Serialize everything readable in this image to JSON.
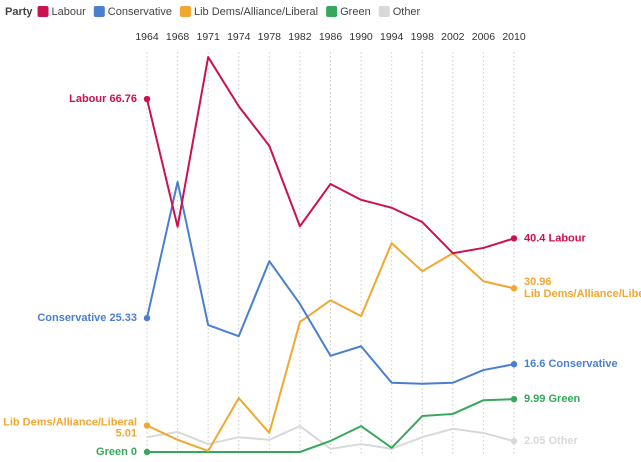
{
  "chart_data": {
    "type": "line",
    "legend_title": "Party",
    "categories": [
      "1964",
      "1968",
      "1971",
      "1974",
      "1978",
      "1982",
      "1986",
      "1990",
      "1994",
      "1998",
      "2002",
      "2006",
      "2010"
    ],
    "ylim": [
      0,
      75
    ],
    "grid": true,
    "series": [
      {
        "name": "Labour",
        "color": "#cc1150",
        "labels": [
          "start",
          "end"
        ],
        "values": [
          66.76,
          42.6,
          74.7,
          65.4,
          57.9,
          42.7,
          50.7,
          47.7,
          46.2,
          43.5,
          37.6,
          38.6,
          40.4
        ]
      },
      {
        "name": "Conservative",
        "color": "#4a7fcf",
        "labels": [
          "start",
          "end"
        ],
        "values": [
          25.33,
          51.1,
          24.0,
          21.9,
          36.1,
          28.0,
          18.2,
          20.0,
          13.1,
          12.9,
          13.1,
          15.5,
          16.6
        ]
      },
      {
        "name": "Lib Dems/Alliance/Liberal",
        "color": "#f0a830",
        "labels": [
          "start",
          "end"
        ],
        "wrap_label": true,
        "values": [
          5.01,
          2.3,
          0.2,
          10.2,
          3.6,
          24.6,
          28.7,
          25.7,
          39.5,
          34.2,
          37.6,
          32.3,
          30.96
        ]
      },
      {
        "name": "Green",
        "color": "#36a85a",
        "labels": [
          "start",
          "end"
        ],
        "values": [
          0,
          0,
          0,
          0,
          0,
          0,
          2.1,
          4.9,
          0.8,
          6.8,
          7.2,
          9.8,
          9.99
        ]
      },
      {
        "name": "Other",
        "color": "#d9d9d9",
        "labels": [
          "end"
        ],
        "values": [
          2.8,
          3.8,
          1.5,
          2.8,
          2.3,
          4.9,
          0.6,
          1.5,
          0.6,
          2.8,
          4.4,
          3.6,
          2.05
        ]
      }
    ]
  }
}
